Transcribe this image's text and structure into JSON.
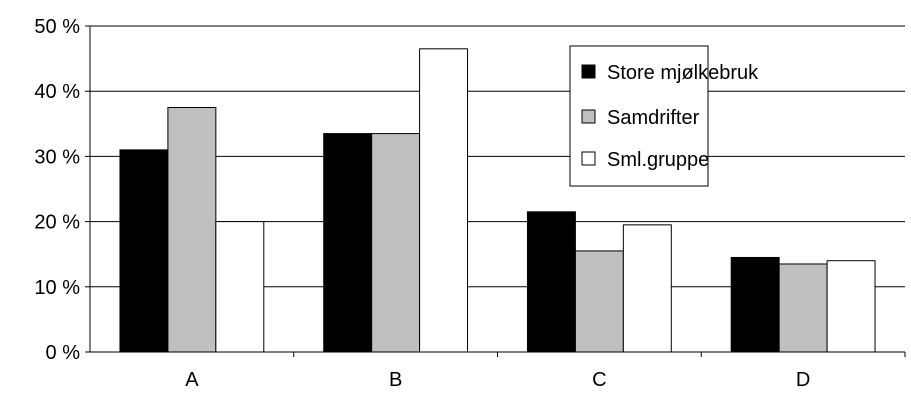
{
  "chart_data": {
    "type": "bar",
    "categories": [
      "A",
      "B",
      "C",
      "D"
    ],
    "series": [
      {
        "name": "Store mjølkebruk",
        "values": [
          31,
          33.5,
          21.5,
          14.5
        ],
        "color": "#000000"
      },
      {
        "name": "Samdrifter",
        "values": [
          37.5,
          33.5,
          15.5,
          13.5
        ],
        "color": "#c0c0c0"
      },
      {
        "name": "Sml.gruppe",
        "values": [
          20,
          46.5,
          19.5,
          14
        ],
        "color": "#ffffff"
      }
    ],
    "ylim": [
      0,
      50
    ],
    "yticks": [
      0,
      10,
      20,
      30,
      40,
      50
    ],
    "ytick_labels": [
      "0 %",
      "10 %",
      "20 %",
      "30 %",
      "40 %",
      "50 %"
    ],
    "grid": true,
    "legend_position": "top-right"
  }
}
